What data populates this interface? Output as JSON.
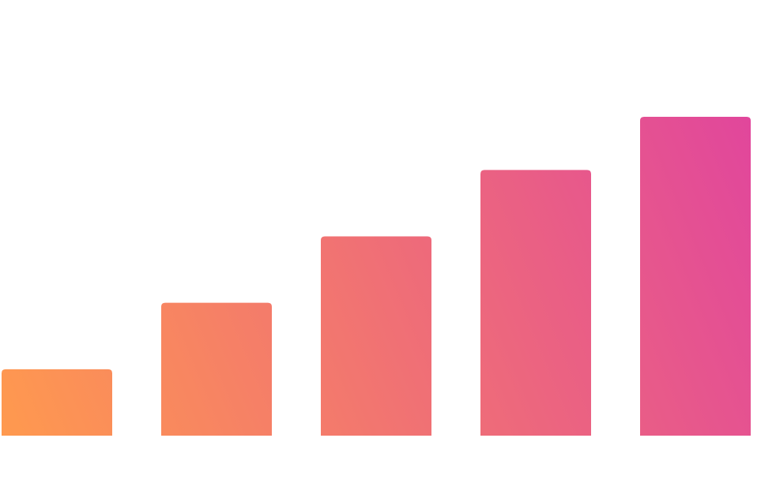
{
  "chart_data": {
    "type": "bar",
    "categories": [
      "",
      "",
      "",
      "",
      ""
    ],
    "values": [
      10,
      20,
      30,
      40,
      48
    ],
    "ylim": [
      0,
      48
    ],
    "grid": false,
    "legend": "none",
    "colors": {
      "gradient_start": "#FF9A4E",
      "gradient_end": "#E0449E"
    }
  }
}
